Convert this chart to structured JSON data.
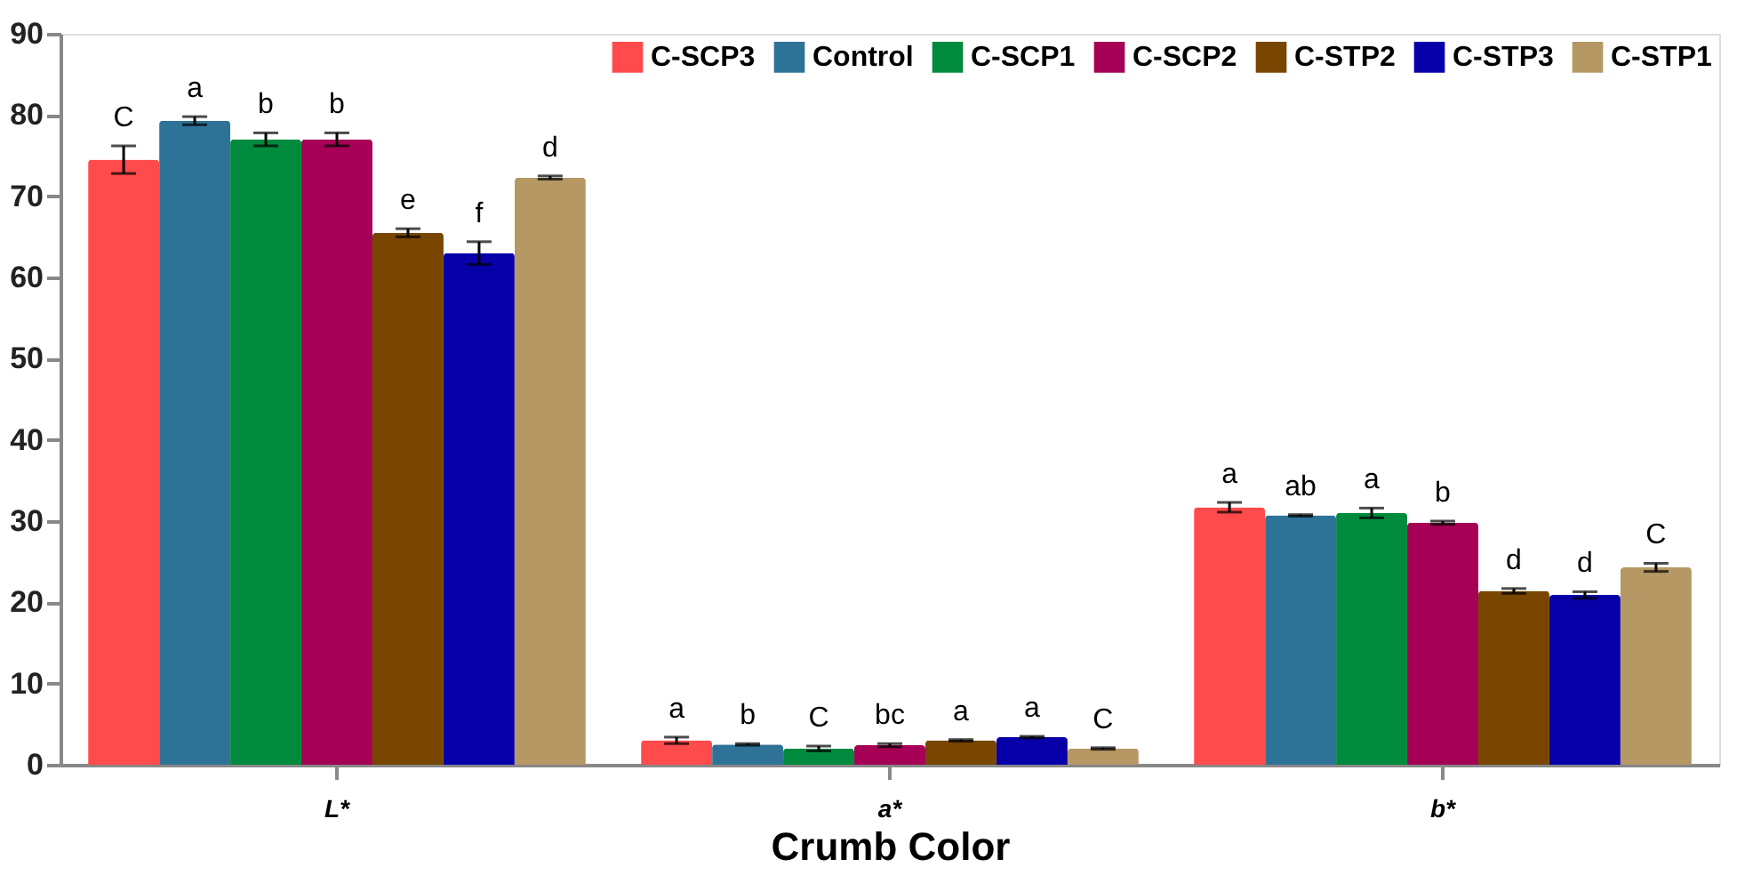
{
  "chart_data": {
    "type": "bar",
    "xlabel": "Crumb Color",
    "categories": [
      "L*",
      "a*",
      "b*"
    ],
    "ylim": [
      0,
      90
    ],
    "yticks": [
      0,
      10,
      20,
      30,
      40,
      50,
      60,
      70,
      80,
      90
    ],
    "grid": false,
    "legend": "top right",
    "series": [
      {
        "name": "C-SCP3",
        "color": "#ff4b4b",
        "values": [
          74.5,
          3.0,
          31.7
        ],
        "errors": [
          1.7,
          0.4,
          0.6
        ],
        "value_labels": [
          "C",
          "a",
          "a"
        ]
      },
      {
        "name": "Control",
        "color": "#2e7298",
        "values": [
          79.3,
          2.5,
          30.7
        ],
        "errors": [
          0.5,
          0.1,
          0.1
        ],
        "value_labels": [
          "a",
          "b",
          "ab"
        ]
      },
      {
        "name": "C-SCP1",
        "color": "#008a3e",
        "values": [
          77.0,
          2.0,
          31.0
        ],
        "errors": [
          0.8,
          0.3,
          0.6
        ],
        "value_labels": [
          "b",
          "C",
          "a"
        ]
      },
      {
        "name": "C-SCP2",
        "color": "#a50055",
        "values": [
          77.0,
          2.4,
          29.8
        ],
        "errors": [
          0.8,
          0.2,
          0.2
        ],
        "value_labels": [
          "b",
          "bc",
          "b"
        ]
      },
      {
        "name": "C-STP2",
        "color": "#784600",
        "values": [
          65.5,
          3.0,
          21.4
        ],
        "errors": [
          0.5,
          0.1,
          0.3
        ],
        "value_labels": [
          "e",
          "a",
          "d"
        ]
      },
      {
        "name": "C-STP3",
        "color": "#0700a8",
        "values": [
          63.0,
          3.4,
          20.9
        ],
        "errors": [
          1.4,
          0.1,
          0.4
        ],
        "value_labels": [
          "f",
          "a",
          "d"
        ]
      },
      {
        "name": "C-STP1",
        "color": "#b59864",
        "values": [
          72.3,
          2.0,
          24.3
        ],
        "errors": [
          0.2,
          0.1,
          0.5
        ],
        "value_labels": [
          "d",
          "C",
          "C"
        ]
      }
    ]
  }
}
